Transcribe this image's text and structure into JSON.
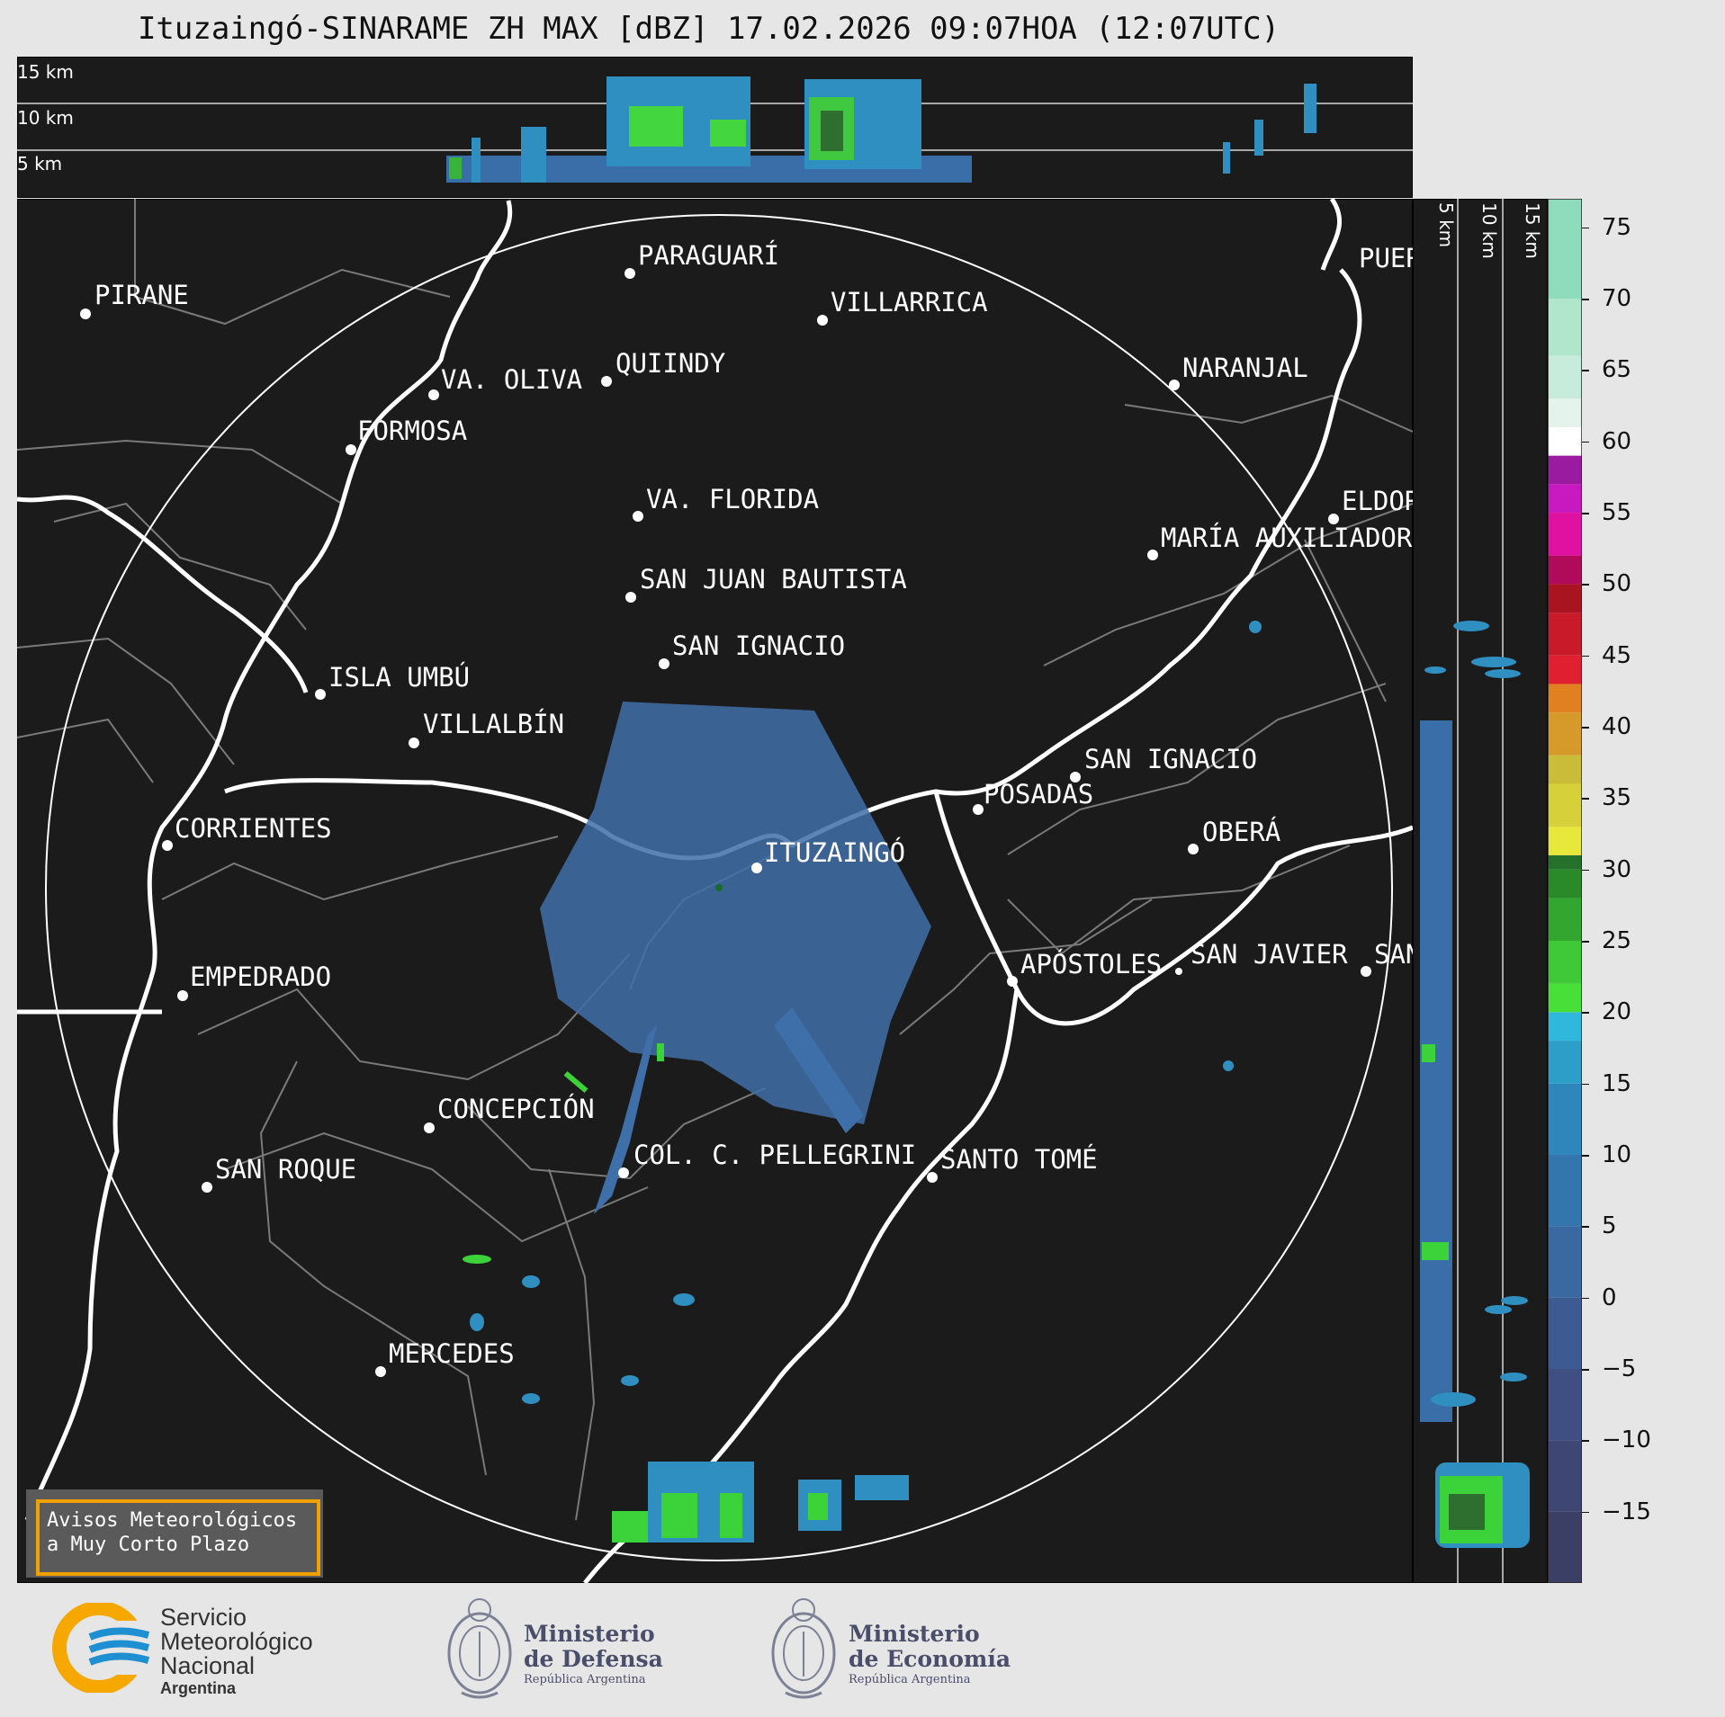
{
  "title": "Ituzaingó-SINARAME ZH MAX [dBZ] 17.02.2026 09:07HOA (12:07UTC)",
  "top_panel": {
    "height_labels": [
      "15 km",
      "10 km",
      "5 km"
    ]
  },
  "side_panel": {
    "height_labels": [
      "5 km",
      "10 km",
      "15 km"
    ]
  },
  "cities": [
    {
      "name": "PIRANE"
    },
    {
      "name": "PARAGUARÍ"
    },
    {
      "name": "VILLARRICA"
    },
    {
      "name": "QUIINDY"
    },
    {
      "name": "VA. OLIVA"
    },
    {
      "name": "NARANJAL"
    },
    {
      "name": "FORMOSA"
    },
    {
      "name": "VA. FLORIDA"
    },
    {
      "name": "ELDOR"
    },
    {
      "name": "MARÍA AUXILIADOR"
    },
    {
      "name": "SAN JUAN BAUTISTA"
    },
    {
      "name": "SAN IGNACIO"
    },
    {
      "name": "ISLA UMBÚ"
    },
    {
      "name": "VILLALBÍN"
    },
    {
      "name": "SAN IGNACIO"
    },
    {
      "name": "POSADAS"
    },
    {
      "name": "CORRIENTES"
    },
    {
      "name": "ITUZAINGÓ"
    },
    {
      "name": "OBERÁ"
    },
    {
      "name": "APÓSTOLES"
    },
    {
      "name": "SAN JAVIER"
    },
    {
      "name": "SAN"
    },
    {
      "name": "EMPEDRADO"
    },
    {
      "name": "CONCEPCIÓN"
    },
    {
      "name": "COL. C. PELLEGRINI"
    },
    {
      "name": "SANTO TOMÉ"
    },
    {
      "name": "SAN ROQUE"
    },
    {
      "name": "MERCEDES"
    },
    {
      "name": "PUER"
    }
  ],
  "colorbar": {
    "ticks": [
      "75",
      "70",
      "65",
      "60",
      "55",
      "50",
      "45",
      "40",
      "35",
      "30",
      "25",
      "20",
      "15",
      "10",
      "5",
      "0",
      "−5",
      "−10",
      "−15"
    ],
    "range": [
      -20,
      77
    ]
  },
  "warning": {
    "line1": "Avisos Meteorológicos",
    "line2": "a Muy Corto Plazo"
  },
  "logos": {
    "smn": {
      "line1": "Servicio",
      "line2": "Meteorológico",
      "line3": "Nacional",
      "line4": "Argentina"
    },
    "defensa": {
      "line1": "Ministerio",
      "line2": "de Defensa",
      "line3": "República Argentina"
    },
    "economia": {
      "line1": "Ministerio",
      "line2": "de Economía",
      "line3": "República Argentina"
    }
  },
  "colors": {
    "map_bg": "#1b1b1b",
    "echo_blue": "#3f6fa8",
    "echo_green": "#3cd23a",
    "warning_border": "#f0a000",
    "smn_orange": "#f7a800",
    "smn_blue": "#1e8fd0"
  }
}
